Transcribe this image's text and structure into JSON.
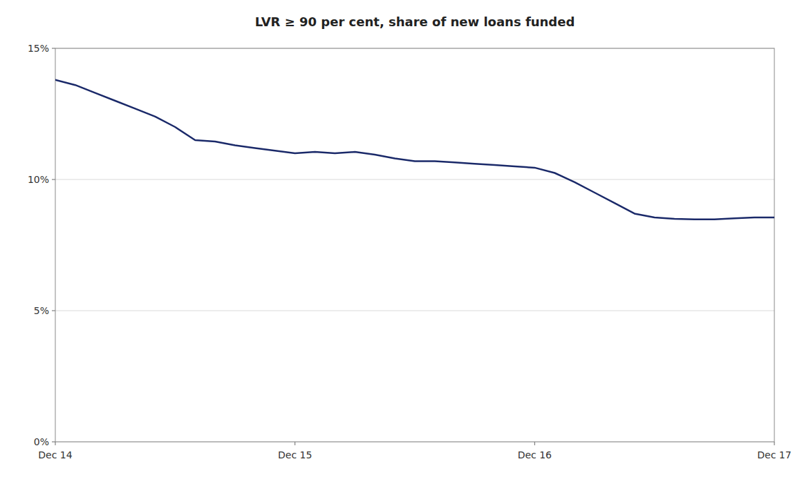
{
  "chart_data": {
    "type": "line",
    "title": "LVR ≥ 90 per cent, share of new loans funded",
    "x": [
      0,
      1,
      2,
      3,
      4,
      5,
      6,
      7,
      8,
      9,
      10,
      11,
      12,
      13,
      14,
      15,
      16,
      17,
      18,
      19,
      20,
      21,
      22,
      23,
      24,
      25,
      26,
      27,
      28,
      29,
      30,
      31,
      32,
      33,
      34,
      35,
      36
    ],
    "values": [
      0.138,
      0.136,
      0.133,
      0.13,
      0.127,
      0.124,
      0.12,
      0.115,
      0.1145,
      0.113,
      0.112,
      0.111,
      0.11,
      0.1105,
      0.11,
      0.1105,
      0.1095,
      0.108,
      0.107,
      0.107,
      0.1065,
      0.106,
      0.1055,
      0.105,
      0.1045,
      0.1025,
      0.099,
      0.095,
      0.091,
      0.087,
      0.0855,
      0.085,
      0.0848,
      0.0848,
      0.0852,
      0.0855,
      0.0855
    ],
    "color": "#1a2969",
    "xlim": [
      0,
      36
    ],
    "xticks": [
      {
        "value": 0,
        "label": "Dec 14"
      },
      {
        "value": 12,
        "label": "Dec 15"
      },
      {
        "value": 24,
        "label": "Dec 16"
      },
      {
        "value": 36,
        "label": "Dec 17"
      }
    ],
    "ylim": [
      0,
      0.15
    ],
    "yticks": [
      {
        "value": 0,
        "label": "0%"
      },
      {
        "value": 0.05,
        "label": "5%"
      },
      {
        "value": 0.1,
        "label": "10%"
      },
      {
        "value": 0.15,
        "label": "15%"
      }
    ],
    "grid": true
  }
}
